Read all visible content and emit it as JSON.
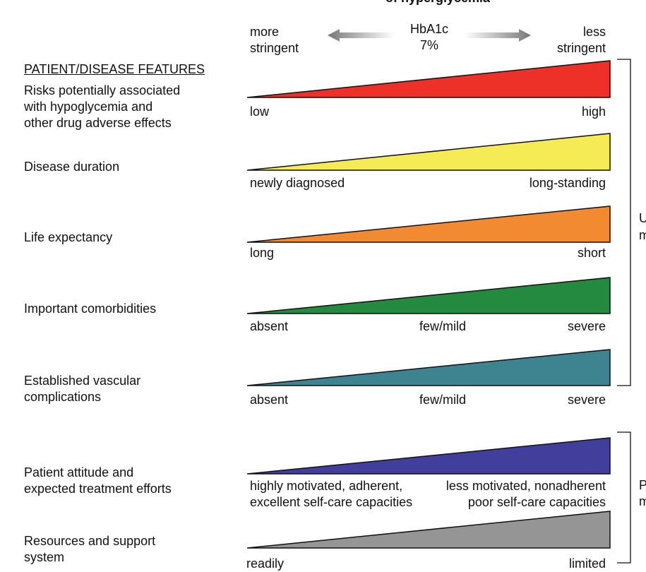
{
  "header": {
    "title_fragment": "of hyperglycemia",
    "more_stringent": [
      "more",
      "stringent"
    ],
    "less_stringent": [
      "less",
      "stringent"
    ],
    "center": [
      "HbA1c",
      "7%"
    ]
  },
  "section_heading": "PATIENT/DISEASE FEATURES",
  "rows": [
    {
      "feature": [
        "Risks potentially associated",
        "with hypoglycemia and",
        "other drug adverse effects"
      ],
      "labels": {
        "left": "low",
        "right": "high"
      },
      "color": "#ee3128"
    },
    {
      "feature": [
        "Disease duration"
      ],
      "labels": {
        "left": "newly diagnosed",
        "right": "long-standing"
      },
      "color": "#f5ec55"
    },
    {
      "feature": [
        "Life expectancy"
      ],
      "labels": {
        "left": "long",
        "right": "short"
      },
      "color": "#f28a31"
    },
    {
      "feature": [
        "Important comorbidities"
      ],
      "labels": {
        "left": "absent",
        "middle": "few/mild",
        "right": "severe"
      },
      "color": "#238a3f"
    },
    {
      "feature": [
        "Established vascular",
        "complications"
      ],
      "labels": {
        "left": "absent",
        "middle": "few/mild",
        "right": "severe"
      },
      "color": "#3e8490"
    },
    {
      "feature": [
        "Patient attitude and",
        "expected treatment efforts"
      ],
      "labels": {
        "left": [
          "highly motivated, adherent,",
          "excellent self-care capacities"
        ],
        "right": [
          "less motivated, nonadherent",
          "poor self-care capacities"
        ]
      },
      "color": "#413f9b"
    },
    {
      "feature": [
        "Resources and support",
        "system"
      ],
      "labels": {
        "left": "readily",
        "right": "limited"
      },
      "color": "#959595"
    }
  ],
  "brackets": {
    "upper": [
      "U",
      "m"
    ],
    "lower": [
      "P",
      "m"
    ]
  },
  "colors": {
    "arrow": "#777777",
    "outline": "#111111",
    "text": "#111111"
  }
}
